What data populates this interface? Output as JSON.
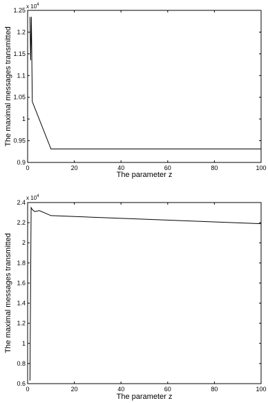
{
  "chart_data": [
    {
      "type": "line",
      "xlabel": "The parameter z",
      "ylabel": "The maximal messages transmitted",
      "y_exponent_label": "x 10",
      "y_exponent_power": "4",
      "xlim": [
        0,
        100
      ],
      "ylim": [
        0.9,
        1.25
      ],
      "x_ticks": [
        0,
        20,
        40,
        60,
        80,
        100
      ],
      "y_ticks": [
        0.9,
        0.95,
        1,
        1.05,
        1.1,
        1.15,
        1.2,
        1.25
      ],
      "x_tick_labels": [
        "0",
        "20",
        "40",
        "60",
        "80",
        "100"
      ],
      "y_tick_labels": [
        "0.9",
        "0.95",
        "1",
        "1.05",
        "1.1",
        "1.15",
        "1.2",
        "1.25"
      ],
      "grid": false,
      "series": [
        {
          "x": [
            1,
            1.3,
            1.6,
            2,
            10,
            100
          ],
          "y": [
            1.235,
            1.135,
            1.235,
            1.04,
            0.931,
            0.931
          ]
        }
      ]
    },
    {
      "type": "line",
      "xlabel": "The parameter z",
      "ylabel": "The maximal messages transmitted",
      "y_exponent_label": "x 10",
      "y_exponent_power": "4",
      "xlim": [
        0,
        100
      ],
      "ylim": [
        0.6,
        2.4
      ],
      "x_ticks": [
        0,
        20,
        40,
        60,
        80,
        100
      ],
      "y_ticks": [
        0.6,
        0.8,
        1,
        1.2,
        1.4,
        1.6,
        1.8,
        2,
        2.2,
        2.4
      ],
      "x_tick_labels": [
        "0",
        "20",
        "40",
        "60",
        "80",
        "100"
      ],
      "y_tick_labels": [
        "0.6",
        "0.8",
        "1",
        "1.2",
        "1.4",
        "1.6",
        "1.8",
        "2",
        "2.2",
        "2.4"
      ],
      "grid": false,
      "series": [
        {
          "x": [
            1,
            1.5,
            2,
            3,
            5,
            10,
            100
          ],
          "y": [
            0.63,
            2.35,
            2.33,
            2.31,
            2.32,
            2.27,
            2.19
          ]
        }
      ]
    }
  ]
}
